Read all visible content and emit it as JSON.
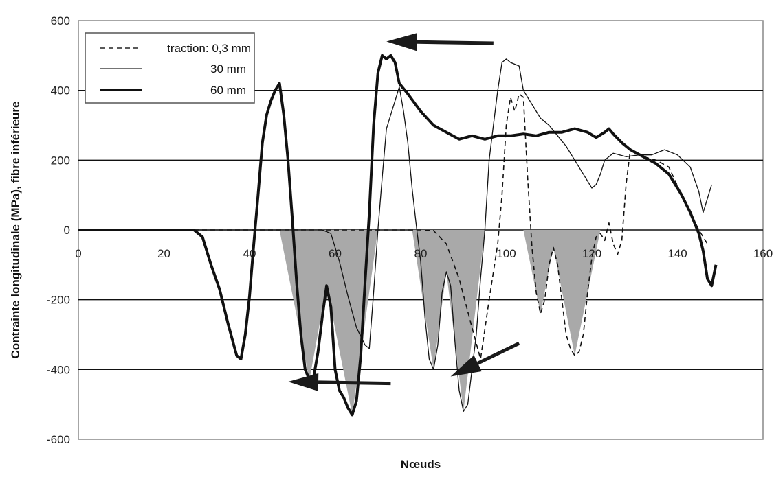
{
  "chart_data": {
    "type": "line",
    "title": "",
    "xlabel": "Nœuds",
    "ylabel": "Contrainte longitudinale (MPa), fibre inférieure",
    "xlim": [
      0,
      160
    ],
    "ylim": [
      -600,
      600
    ],
    "xticks": [
      "0",
      "20",
      "40",
      "60",
      "80",
      "100",
      "120",
      "140",
      "160"
    ],
    "yticks": [
      "600",
      "400",
      "200",
      "0",
      "-200",
      "-400",
      "-600"
    ],
    "grid": "horizontal",
    "legend_position": "top-left",
    "shaded_compression_regions": true,
    "series": [
      {
        "name": "traction: 0,3 mm",
        "style": "dashed",
        "points": [
          [
            0,
            0
          ],
          [
            80,
            0
          ],
          [
            83,
            -2
          ],
          [
            86,
            -40
          ],
          [
            89,
            -140
          ],
          [
            92,
            -280
          ],
          [
            94,
            -370
          ],
          [
            96,
            -200
          ],
          [
            98,
            -40
          ],
          [
            99,
            100
          ],
          [
            100,
            300
          ],
          [
            101,
            380
          ],
          [
            102,
            340
          ],
          [
            103,
            390
          ],
          [
            104,
            380
          ],
          [
            105,
            150
          ],
          [
            106,
            -50
          ],
          [
            107,
            -180
          ],
          [
            108,
            -240
          ],
          [
            109,
            -200
          ],
          [
            110,
            -100
          ],
          [
            111,
            -50
          ],
          [
            112,
            -100
          ],
          [
            113,
            -200
          ],
          [
            114,
            -300
          ],
          [
            115,
            -340
          ],
          [
            116,
            -360
          ],
          [
            117,
            -350
          ],
          [
            118,
            -300
          ],
          [
            119,
            -180
          ],
          [
            120,
            -80
          ],
          [
            121,
            -20
          ],
          [
            122,
            -10
          ],
          [
            123,
            -30
          ],
          [
            124,
            20
          ],
          [
            125,
            -40
          ],
          [
            126,
            -70
          ],
          [
            127,
            -30
          ],
          [
            128,
            130
          ],
          [
            129,
            230
          ],
          [
            130,
            220
          ],
          [
            132,
            210
          ],
          [
            135,
            200
          ],
          [
            138,
            180
          ],
          [
            141,
            100
          ],
          [
            143,
            50
          ],
          [
            145,
            0
          ],
          [
            147,
            -40
          ]
        ]
      },
      {
        "name": "30 mm",
        "style": "thin",
        "points": [
          [
            0,
            0
          ],
          [
            57,
            0
          ],
          [
            59,
            -10
          ],
          [
            61,
            -90
          ],
          [
            63,
            -190
          ],
          [
            65,
            -280
          ],
          [
            67,
            -330
          ],
          [
            68,
            -340
          ],
          [
            69,
            -180
          ],
          [
            70,
            0
          ],
          [
            71,
            150
          ],
          [
            72,
            290
          ],
          [
            73,
            330
          ],
          [
            74,
            370
          ],
          [
            75,
            410
          ],
          [
            76,
            340
          ],
          [
            77,
            250
          ],
          [
            78,
            120
          ],
          [
            79,
            10
          ],
          [
            80,
            -90
          ],
          [
            81,
            -250
          ],
          [
            82,
            -370
          ],
          [
            83,
            -400
          ],
          [
            84,
            -330
          ],
          [
            85,
            -180
          ],
          [
            86,
            -120
          ],
          [
            87,
            -160
          ],
          [
            88,
            -320
          ],
          [
            89,
            -460
          ],
          [
            90,
            -520
          ],
          [
            91,
            -500
          ],
          [
            92,
            -400
          ],
          [
            93,
            -300
          ],
          [
            94,
            -140
          ],
          [
            95,
            0
          ],
          [
            96,
            200
          ],
          [
            97,
            300
          ],
          [
            98,
            400
          ],
          [
            99,
            480
          ],
          [
            100,
            490
          ],
          [
            101,
            480
          ],
          [
            103,
            470
          ],
          [
            104,
            400
          ],
          [
            106,
            360
          ],
          [
            108,
            320
          ],
          [
            110,
            300
          ],
          [
            112,
            270
          ],
          [
            114,
            240
          ],
          [
            116,
            200
          ],
          [
            118,
            160
          ],
          [
            120,
            120
          ],
          [
            121,
            130
          ],
          [
            122,
            160
          ],
          [
            123,
            200
          ],
          [
            125,
            220
          ],
          [
            128,
            210
          ],
          [
            131,
            215
          ],
          [
            134,
            215
          ],
          [
            137,
            230
          ],
          [
            140,
            215
          ],
          [
            143,
            180
          ],
          [
            145,
            110
          ],
          [
            146,
            50
          ],
          [
            147,
            90
          ],
          [
            148,
            130
          ]
        ]
      },
      {
        "name": "60 mm",
        "style": "thick",
        "points": [
          [
            0,
            0
          ],
          [
            27,
            0
          ],
          [
            29,
            -20
          ],
          [
            31,
            -100
          ],
          [
            33,
            -170
          ],
          [
            35,
            -270
          ],
          [
            37,
            -360
          ],
          [
            38,
            -370
          ],
          [
            39,
            -300
          ],
          [
            40,
            -190
          ],
          [
            41,
            -40
          ],
          [
            42,
            100
          ],
          [
            43,
            250
          ],
          [
            44,
            330
          ],
          [
            45,
            370
          ],
          [
            46,
            400
          ],
          [
            47,
            420
          ],
          [
            48,
            330
          ],
          [
            49,
            200
          ],
          [
            50,
            30
          ],
          [
            51,
            -150
          ],
          [
            52,
            -300
          ],
          [
            53,
            -400
          ],
          [
            54,
            -430
          ],
          [
            55,
            -420
          ],
          [
            56,
            -350
          ],
          [
            57,
            -250
          ],
          [
            58,
            -160
          ],
          [
            59,
            -220
          ],
          [
            60,
            -400
          ],
          [
            61,
            -460
          ],
          [
            62,
            -480
          ],
          [
            63,
            -510
          ],
          [
            64,
            -530
          ],
          [
            65,
            -490
          ],
          [
            66,
            -360
          ],
          [
            67,
            -150
          ],
          [
            68,
            50
          ],
          [
            69,
            300
          ],
          [
            70,
            450
          ],
          [
            71,
            500
          ],
          [
            72,
            490
          ],
          [
            73,
            500
          ],
          [
            74,
            480
          ],
          [
            75,
            420
          ],
          [
            77,
            390
          ],
          [
            80,
            340
          ],
          [
            83,
            300
          ],
          [
            86,
            280
          ],
          [
            89,
            260
          ],
          [
            92,
            270
          ],
          [
            95,
            260
          ],
          [
            98,
            270
          ],
          [
            101,
            270
          ],
          [
            104,
            275
          ],
          [
            107,
            270
          ],
          [
            110,
            280
          ],
          [
            113,
            280
          ],
          [
            116,
            290
          ],
          [
            119,
            280
          ],
          [
            121,
            265
          ],
          [
            123,
            280
          ],
          [
            124,
            290
          ],
          [
            125,
            275
          ],
          [
            127,
            250
          ],
          [
            129,
            230
          ],
          [
            132,
            210
          ],
          [
            135,
            190
          ],
          [
            138,
            160
          ],
          [
            141,
            100
          ],
          [
            143,
            50
          ],
          [
            145,
            -10
          ],
          [
            146,
            -60
          ],
          [
            147,
            -140
          ],
          [
            148,
            -160
          ],
          [
            149,
            -100
          ]
        ]
      }
    ],
    "shaded_regions": [
      [
        [
          47,
          0
        ],
        [
          54,
          -430
        ],
        [
          58,
          -160
        ],
        [
          64,
          -530
        ],
        [
          70,
          0
        ]
      ],
      [
        [
          78,
          0
        ],
        [
          83,
          -400
        ],
        [
          86,
          -120
        ],
        [
          90,
          -520
        ],
        [
          95,
          0
        ]
      ],
      [
        [
          104,
          0
        ],
        [
          108,
          -240
        ],
        [
          111,
          -50
        ],
        [
          116,
          -360
        ],
        [
          122,
          0
        ]
      ]
    ],
    "annotations": [
      {
        "shape": "arrow",
        "from": [
          97,
          535
        ],
        "to": [
          72,
          540
        ]
      },
      {
        "shape": "arrow",
        "from": [
          73,
          -440
        ],
        "to": [
          49,
          -435
        ]
      },
      {
        "shape": "arrow",
        "from": [
          103,
          -325
        ],
        "to": [
          87,
          -420
        ]
      }
    ]
  }
}
